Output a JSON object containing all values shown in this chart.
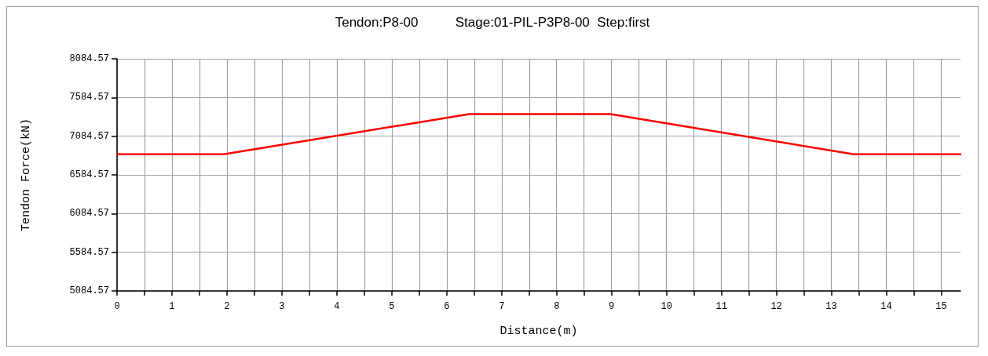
{
  "chart_data": {
    "type": "line",
    "title": "Tendon:P8-00          Stage:01-PIL-P3P8-00  Step:first",
    "xlabel": "Distance(m)",
    "ylabel": "Tendon Force(kN)",
    "series": [
      {
        "color": "#ff0000",
        "x": [
          0,
          1.94,
          6.41,
          8.98,
          13.41,
          15.35
        ],
        "values": [
          6850,
          6850,
          7370,
          7370,
          6850,
          6850
        ]
      }
    ],
    "xlim": [
      0,
      15.35
    ],
    "xticks": [
      0,
      {
        "value": 0.5,
        "label": null
      },
      1,
      {
        "value": 1.5,
        "label": null
      },
      2,
      {
        "value": 2.5,
        "label": null
      },
      3,
      {
        "value": 3.5,
        "label": null
      },
      4,
      {
        "value": 4.5,
        "label": null
      },
      5,
      {
        "value": 5.5,
        "label": null
      },
      6,
      {
        "value": 6.5,
        "label": null
      },
      7,
      {
        "value": 7.5,
        "label": null
      },
      8,
      {
        "value": 8.5,
        "label": null
      },
      9,
      {
        "value": 9.5,
        "label": null
      },
      10,
      {
        "value": 10.5,
        "label": null
      },
      11,
      {
        "value": 11.5,
        "label": null
      },
      12,
      {
        "value": 12.5,
        "label": null
      },
      13,
      {
        "value": 13.5,
        "label": null
      },
      14,
      {
        "value": 14.5,
        "label": null
      },
      15
    ],
    "ylim": [
      5084.57,
      8084.57
    ],
    "yticks": [
      5084.57,
      5584.57,
      6084.57,
      6584.57,
      7084.57,
      7584.57,
      8084.57
    ],
    "grid": true,
    "marker": "none",
    "line_style": "solid"
  }
}
